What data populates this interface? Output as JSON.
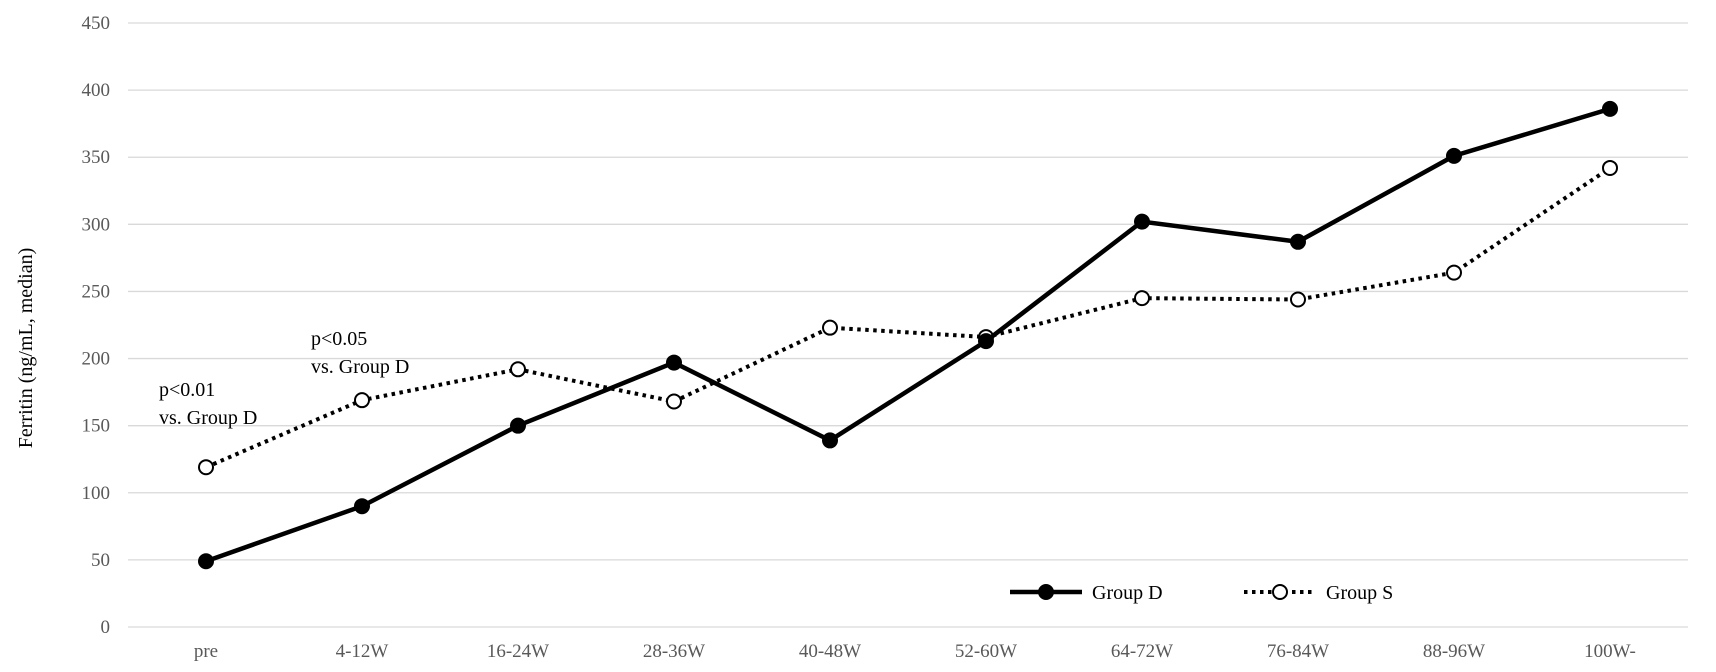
{
  "chart_data": {
    "type": "line",
    "title": "",
    "xlabel": "",
    "ylabel": "Ferritin (ng/mL, median)",
    "ylim": [
      0,
      450
    ],
    "yticks": [
      0,
      50,
      100,
      150,
      200,
      250,
      300,
      350,
      400,
      450
    ],
    "grid": true,
    "legend_position": "bottom-right",
    "categories": [
      "pre",
      "4-12W",
      "16-24W",
      "28-36W",
      "40-48W",
      "52-60W",
      "64-72W",
      "76-84W",
      "88-96W",
      "100W-"
    ],
    "series": [
      {
        "name": "Group D",
        "style": "solid",
        "marker": "filled-circle",
        "color": "#000000",
        "values": [
          49,
          90,
          150,
          197,
          139,
          213,
          302,
          287,
          351,
          386
        ]
      },
      {
        "name": "Group S",
        "style": "dotted",
        "marker": "open-circle",
        "color": "#000000",
        "values": [
          119,
          169,
          192,
          168,
          223,
          216,
          245,
          244,
          264,
          342
        ]
      }
    ],
    "annotations": [
      {
        "category": "pre",
        "lines": [
          "p<0.01",
          "vs. Group D"
        ]
      },
      {
        "category": "4-12W",
        "lines": [
          "p<0.05",
          "vs. Group D"
        ]
      }
    ]
  }
}
